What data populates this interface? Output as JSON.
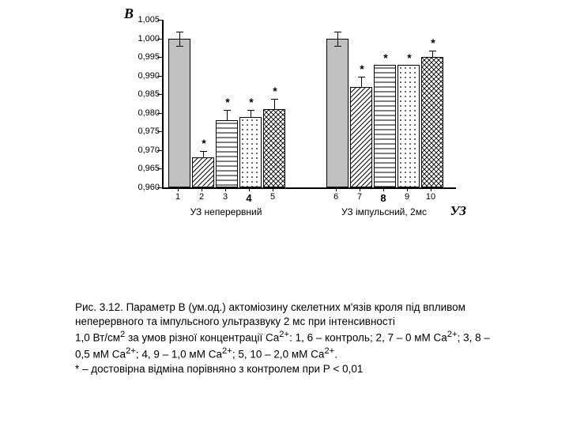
{
  "chart": {
    "type": "bar",
    "ylabel": "B",
    "xlabel": "УЗ",
    "ylim": [
      0.96,
      1.005
    ],
    "yticks": [
      0.96,
      0.965,
      0.97,
      0.975,
      0.98,
      0.985,
      0.99,
      0.995,
      1.0,
      1.005
    ],
    "ytick_labels": [
      "0,960",
      "0,965",
      "0,970",
      "0,975",
      "0,980",
      "0,985",
      "0,990",
      "0,995",
      "1,000",
      "1,005"
    ],
    "background_color": "#ffffff",
    "axis_color": "#000000",
    "ylabel_fontsize": 18,
    "xlabel_fontsize": 17,
    "tick_fontsize": 11,
    "bar_border_color": "#000000",
    "groups": [
      {
        "label": "УЗ неперервний",
        "bars": [
          {
            "x": "1",
            "value": 1.0,
            "err_low": 0.998,
            "err_high": 1.002,
            "fill": "#c0c0c0",
            "pattern": "solid",
            "sig": ""
          },
          {
            "x": "2",
            "value": 0.968,
            "err_low": 0.968,
            "err_high": 0.97,
            "fill": "#ffffff",
            "pattern": "diag",
            "sig": "*"
          },
          {
            "x": "3",
            "value": 0.978,
            "err_low": 0.978,
            "err_high": 0.981,
            "fill": "#ffffff",
            "pattern": "hline",
            "sig": "*"
          },
          {
            "x": "4",
            "value": 0.979,
            "err_low": 0.979,
            "err_high": 0.981,
            "fill": "#ffffff",
            "pattern": "dots",
            "sig": "*"
          },
          {
            "x": "5",
            "value": 0.981,
            "err_low": 0.981,
            "err_high": 0.984,
            "fill": "#ffffff",
            "pattern": "crosshatch",
            "sig": "*"
          }
        ]
      },
      {
        "label": "УЗ імпульсний, 2мс",
        "bars": [
          {
            "x": "6",
            "value": 1.0,
            "err_low": 0.998,
            "err_high": 1.002,
            "fill": "#c0c0c0",
            "pattern": "solid",
            "sig": ""
          },
          {
            "x": "7",
            "value": 0.987,
            "err_low": 0.987,
            "err_high": 0.99,
            "fill": "#ffffff",
            "pattern": "diag",
            "sig": "*"
          },
          {
            "x": "8",
            "value": 0.993,
            "err_low": 0.993,
            "err_high": 0.993,
            "fill": "#ffffff",
            "pattern": "hline",
            "sig": "*"
          },
          {
            "x": "9",
            "value": 0.993,
            "err_low": 0.993,
            "err_high": 0.993,
            "fill": "#ffffff",
            "pattern": "dots",
            "sig": "*"
          },
          {
            "x": "10",
            "value": 0.995,
            "err_low": 0.995,
            "err_high": 0.997,
            "fill": "#ffffff",
            "pattern": "crosshatch",
            "sig": "*"
          }
        ]
      }
    ],
    "bold_xticks": [
      "4",
      "8"
    ]
  },
  "caption": {
    "line1": "Рис. 3.12. Параметр В (ум.од.) актоміозину скелетних м'язів кроля під впливом неперервного та імпульсного ультразвуку 2 мс при інтенсивності",
    "line2_pre": "1,0 Вт/см",
    "line2_sup": "2",
    "line2_mid": " за умов різної концентрації Ca",
    "ca_sup": "2+",
    "line2_cont": ": 1, 6 – контроль; 2, 7 – 0 мМ Ca",
    "line2_cont2": "; 3, 8 – 0,5 мМ Ca",
    "line2_cont3": "; 4, 9 – 1,0 мМ Ca",
    "line2_cont4": "; 5, 10 – 2,0 мМ Ca",
    "line2_end": ".",
    "line3": "* – достовірна відміна порівняно з контролем при Р < 0,01"
  }
}
